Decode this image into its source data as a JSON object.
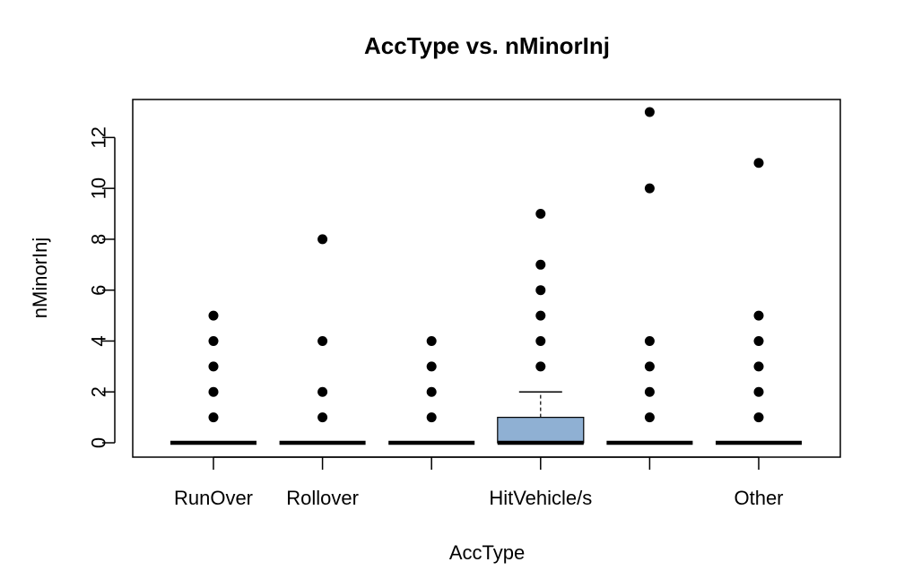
{
  "chart_data": {
    "type": "boxplot",
    "title": "AccType  vs. nMinorInj",
    "xlabel": "AccType",
    "ylabel": "nMinorInj",
    "ylim": [
      0,
      13
    ],
    "yticks": [
      0,
      2,
      4,
      6,
      8,
      10,
      12
    ],
    "categories": [
      "RunOver",
      "Rollover",
      "",
      "HitVehicle/s",
      "",
      "Other"
    ],
    "box_fill": "#8fb0d3",
    "grid": false,
    "boxes": [
      {
        "category": "RunOver",
        "q1": 0,
        "median": 0,
        "q3": 0,
        "whisker_low": 0,
        "whisker_high": 0,
        "outliers": [
          1,
          2,
          3,
          4,
          5
        ]
      },
      {
        "category": "Rollover",
        "q1": 0,
        "median": 0,
        "q3": 0,
        "whisker_low": 0,
        "whisker_high": 0,
        "outliers": [
          1,
          2,
          4,
          8
        ]
      },
      {
        "category": "",
        "q1": 0,
        "median": 0,
        "q3": 0,
        "whisker_low": 0,
        "whisker_high": 0,
        "outliers": [
          1,
          2,
          3,
          4
        ]
      },
      {
        "category": "HitVehicle/s",
        "q1": 0,
        "median": 0,
        "q3": 1,
        "whisker_low": 0,
        "whisker_high": 2,
        "outliers": [
          3,
          4,
          5,
          6,
          7,
          9
        ]
      },
      {
        "category": "",
        "q1": 0,
        "median": 0,
        "q3": 0,
        "whisker_low": 0,
        "whisker_high": 0,
        "outliers": [
          1,
          2,
          3,
          4,
          10,
          13
        ]
      },
      {
        "category": "Other",
        "q1": 0,
        "median": 0,
        "q3": 0,
        "whisker_low": 0,
        "whisker_high": 0,
        "outliers": [
          1,
          2,
          3,
          4,
          5,
          11
        ]
      }
    ]
  }
}
